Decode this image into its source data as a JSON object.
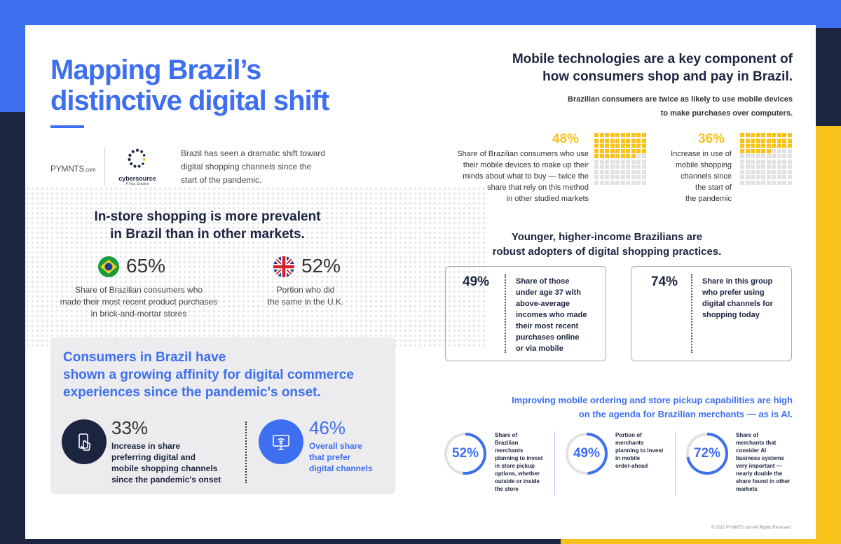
{
  "header": {
    "title_line1": "Mapping Brazil’s",
    "title_line2": "distinctive digital shift"
  },
  "logos": {
    "pymnts": "PYMNTS",
    "pymnts_suffix": ".com",
    "cybersource": "cybersource",
    "cybersource_sub": "A Visa Solution"
  },
  "intro": "Brazil has seen a dramatic shift toward digital shopping channels since the start of the pandemic.",
  "instore": {
    "heading_line1": "In-store shopping is more prevalent",
    "heading_line2": "in Brazil than in other markets.",
    "brazil": {
      "pct": "65%",
      "desc_line1": "Share of Brazilian consumers who",
      "desc_line2": "made their most recent product purchases",
      "desc_line3": "in brick-and-mortar stores"
    },
    "uk": {
      "pct": "52%",
      "desc_line1": "Portion who did",
      "desc_line2": "the same in the U.K."
    }
  },
  "affinity": {
    "heading_line1": "Consumers in Brazil have",
    "heading_line2": "shown a growing affinity for digital commerce",
    "heading_line3": "experiences since the pandemic's onset.",
    "stat1": {
      "pct": "33%",
      "desc_line1": "Increase in share",
      "desc_line2": "preferring digital and",
      "desc_line3": "mobile shopping channels",
      "desc_line4": "since the pandemic's onset"
    },
    "stat2": {
      "pct": "46%",
      "desc_line1": "Overall share",
      "desc_line2": "that prefer",
      "desc_line3": "digital channels"
    }
  },
  "mobile": {
    "heading_line1": "Mobile technologies are a key component of",
    "heading_line2": "how consumers shop and pay in Brazil.",
    "sub_line1": "Brazilian consumers are twice as likely to use mobile devices",
    "sub_line2": "to make purchases over computers.",
    "stat1": {
      "pct": "48%",
      "value": 48,
      "desc_line1": "Share of Brazilian consumers who use",
      "desc_line2": "their mobile devices to make up their",
      "desc_line3": "minds about what to buy — twice the",
      "desc_line4": "share that rely on this method",
      "desc_line5": "in other studied markets"
    },
    "stat2": {
      "pct": "36%",
      "value": 36,
      "desc_line1": "Increase in use of",
      "desc_line2": "mobile shopping",
      "desc_line3": "channels since",
      "desc_line4": "the start of",
      "desc_line5": "the pandemic"
    }
  },
  "younger": {
    "heading_line1": "Younger, higher-income Brazilians are",
    "heading_line2": "robust adopters of digital shopping practices.",
    "box1": {
      "pct": "49%",
      "desc_line1": "Share of those",
      "desc_line2": "under age 37 with",
      "desc_line3": "above-average",
      "desc_line4": "incomes who made",
      "desc_line5": "their most recent",
      "desc_line6": "purchases online",
      "desc_line7": "or via mobile"
    },
    "box2": {
      "pct": "74%",
      "desc_line1": "Share in this group",
      "desc_line2": "who prefer using",
      "desc_line3": "digital channels for",
      "desc_line4": "shopping today"
    }
  },
  "merchants": {
    "heading_line1": "Improving mobile ordering and store pickup capabilities are high",
    "heading_line2": "on the agenda for Brazilian merchants — as is AI.",
    "ring1": {
      "pct": "52%",
      "value": 52,
      "lines": [
        "Share of",
        "Brazilian",
        "merchants",
        "planning to invest",
        "in store pickup",
        "options, whether",
        "outside or inside",
        "the store"
      ]
    },
    "ring2": {
      "pct": "49%",
      "value": 49,
      "lines": [
        "Portion of",
        "merchants",
        "planning to invest",
        "in mobile",
        "order-ahead"
      ]
    },
    "ring3": {
      "pct": "72%",
      "value": 72,
      "lines": [
        "Share of",
        "merchants that",
        "consider AI",
        "business systems",
        "very important —",
        "nearly double the",
        "share found in other",
        "markets"
      ]
    }
  },
  "footer": {
    "copyright": "© 2021 PYMNTS.com All Rights Reserved"
  },
  "colors": {
    "blue": "#3e6ff0",
    "navy": "#1c2540",
    "yellow": "#f8c21a"
  }
}
